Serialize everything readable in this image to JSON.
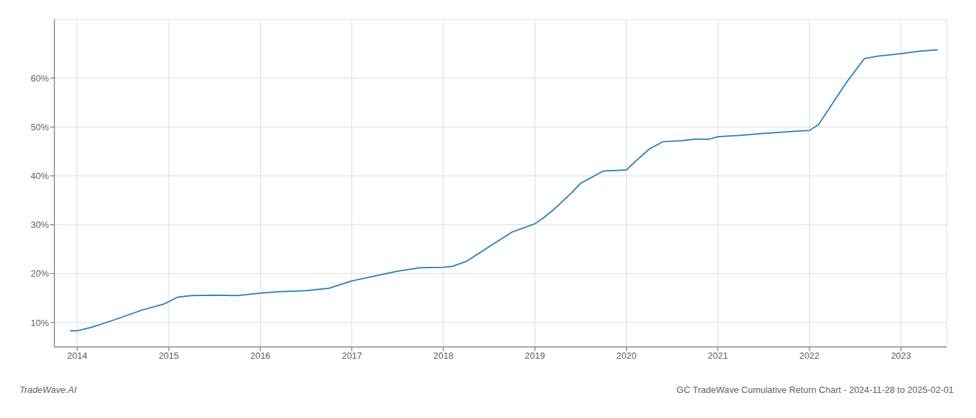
{
  "chart_data": {
    "type": "line",
    "title": "GC TradeWave Cumulative Return Chart - 2024-11-28 to 2025-02-01",
    "annotations": [
      "TradeWave.AI"
    ],
    "x": [
      2013.92,
      2014.0,
      2014.15,
      2014.4,
      2014.7,
      2014.95,
      2015.1,
      2015.25,
      2015.5,
      2015.75,
      2016.0,
      2016.2,
      2016.5,
      2016.75,
      2017.0,
      2017.25,
      2017.5,
      2017.75,
      2018.0,
      2018.1,
      2018.25,
      2018.5,
      2018.75,
      2019.0,
      2019.1,
      2019.2,
      2019.4,
      2019.5,
      2019.75,
      2020.0,
      2020.1,
      2020.25,
      2020.4,
      2020.6,
      2020.75,
      2020.9,
      2021.0,
      2021.25,
      2021.5,
      2021.75,
      2021.9,
      2022.0,
      2022.1,
      2022.4,
      2022.6,
      2022.75,
      2023.0,
      2023.2,
      2023.4
    ],
    "values": [
      8.3,
      8.3,
      9.0,
      10.5,
      12.5,
      13.8,
      15.2,
      15.5,
      15.6,
      15.5,
      16.0,
      16.3,
      16.5,
      17.0,
      18.5,
      19.5,
      20.5,
      21.2,
      21.3,
      21.5,
      22.5,
      25.5,
      28.5,
      30.2,
      31.5,
      33.0,
      36.5,
      38.5,
      41.0,
      41.2,
      43.0,
      45.5,
      47.0,
      47.2,
      47.5,
      47.5,
      48.0,
      48.3,
      48.7,
      49.0,
      49.2,
      49.3,
      50.5,
      59.0,
      64.0,
      64.5,
      65.0,
      65.5,
      65.8
    ],
    "color": "#3a8bbf",
    "xlim": [
      2013.75,
      2023.5
    ],
    "ylim": [
      5,
      72
    ],
    "xticks": [
      2014,
      2015,
      2016,
      2017,
      2018,
      2019,
      2020,
      2021,
      2022,
      2023
    ],
    "yticks": [
      {
        "value": 10,
        "label": "10%"
      },
      {
        "value": 20,
        "label": "20%"
      },
      {
        "value": 30,
        "label": "30%"
      },
      {
        "value": 40,
        "label": "40%"
      },
      {
        "value": 50,
        "label": "50%"
      },
      {
        "value": 60,
        "label": "60%"
      }
    ],
    "grid": true
  }
}
